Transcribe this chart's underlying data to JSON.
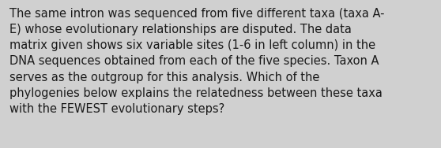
{
  "text": "The same intron was sequenced from five different taxa (taxa A-\nE) whose evolutionary relationships are disputed. The data\nmatrix given shows six variable sites (1-6 in left column) in the\nDNA sequences obtained from each of the five species. Taxon A\nserves as the outgroup for this analysis. Which of the\nphylogenies below explains the relatedness between these taxa\nwith the FEWEST evolutionary steps?",
  "background_color": "#d0d0d0",
  "text_color": "#1a1a1a",
  "font_size": 10.5,
  "fig_width": 5.58,
  "fig_height": 1.88
}
